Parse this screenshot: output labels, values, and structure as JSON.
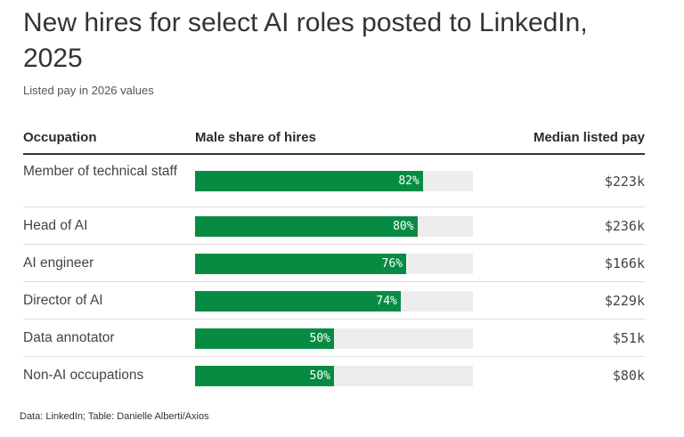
{
  "title": "New hires for select AI roles posted to LinkedIn, 2025",
  "subtitle": "Listed pay in 2026 values",
  "headers": {
    "occupation": "Occupation",
    "share": "Male share of hires",
    "pay": "Median listed pay"
  },
  "source": "Data: LinkedIn; Table: Danielle Alberti/Axios",
  "colors": {
    "bar": "#078b43",
    "track": "#ededed"
  },
  "chart_data": {
    "type": "table",
    "columns": [
      "Occupation",
      "Male share of hires",
      "Median listed pay"
    ],
    "rows": [
      {
        "occupation": "Member of technical staff",
        "share": 82,
        "share_label": "82%",
        "pay": "$223k"
      },
      {
        "occupation": "Head of AI",
        "share": 80,
        "share_label": "80%",
        "pay": "$236k"
      },
      {
        "occupation": "AI engineer",
        "share": 76,
        "share_label": "76%",
        "pay": "$166k"
      },
      {
        "occupation": "Director of AI",
        "share": 74,
        "share_label": "74%",
        "pay": "$229k"
      },
      {
        "occupation": "Data annotator",
        "share": 50,
        "share_label": "50%",
        "pay": "$51k"
      },
      {
        "occupation": "Non-AI occupations",
        "share": 50,
        "share_label": "50%",
        "pay": "$80k"
      }
    ],
    "share_range": [
      0,
      100
    ]
  }
}
